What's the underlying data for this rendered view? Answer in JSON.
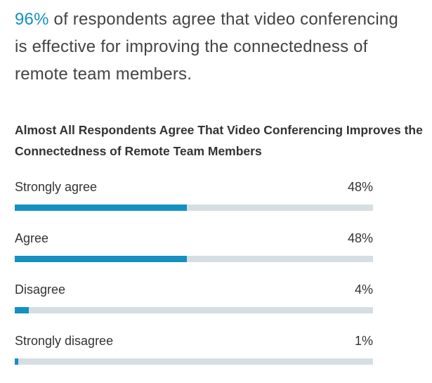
{
  "headline": {
    "highlight": "96%",
    "text": "of respondents agree that video conferencing is effective for improving the connectedness of remote team members."
  },
  "chart_data": {
    "type": "bar",
    "orientation": "horizontal",
    "title": "Almost All Respondents Agree That Video Conferencing Improves the Connectedness of Remote Team Members",
    "categories": [
      "Strongly agree",
      "Agree",
      "Disagree",
      "Strongly disagree"
    ],
    "values": [
      48,
      48,
      4,
      1
    ],
    "value_labels": [
      "48%",
      "48%",
      "4%",
      "1%"
    ],
    "xlim": [
      0,
      100
    ],
    "color": "#1391c1",
    "track_color": "#d5dee3"
  }
}
